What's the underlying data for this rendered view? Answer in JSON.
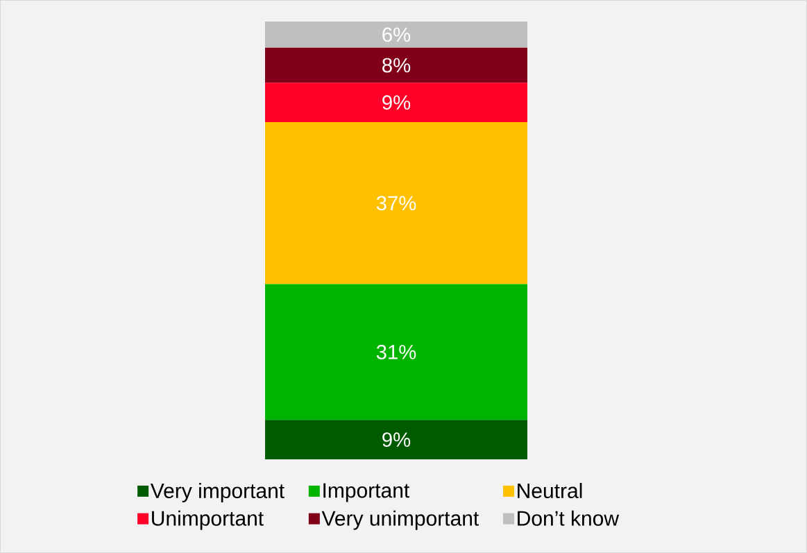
{
  "chart_data": {
    "type": "bar",
    "stacked": true,
    "categories": [
      null
    ],
    "legend": "bottom",
    "series": [
      {
        "name": "Very important",
        "color": "#005a00",
        "values": [
          9
        ],
        "value_labels": [
          "9%"
        ]
      },
      {
        "name": "Important",
        "color": "#00b400",
        "values": [
          31
        ],
        "value_labels": [
          "31%"
        ]
      },
      {
        "name": "Neutral",
        "color": "#ffc000",
        "values": [
          37
        ],
        "value_labels": [
          "37%"
        ]
      },
      {
        "name": "Unimportant",
        "color": "#ff0028",
        "values": [
          9
        ],
        "value_labels": [
          "9%"
        ]
      },
      {
        "name": "Very unimportant",
        "color": "#7f0018",
        "values": [
          8
        ],
        "value_labels": [
          "8%"
        ]
      },
      {
        "name": "Don’t know",
        "color": "#bfbfbf",
        "values": [
          6
        ],
        "value_labels": [
          "6%"
        ]
      }
    ]
  }
}
